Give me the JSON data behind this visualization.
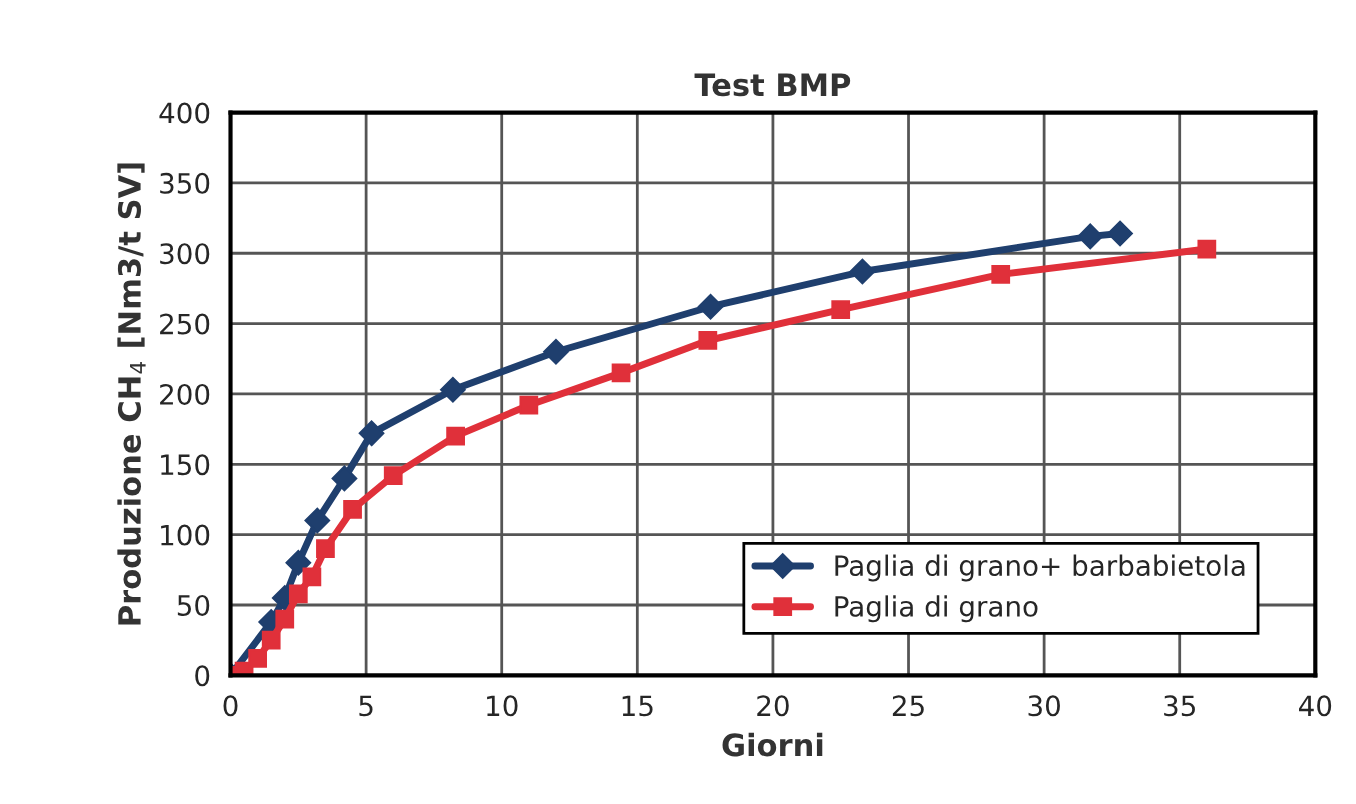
{
  "chart_data": {
    "type": "line",
    "title": "Test BMP",
    "xlabel": "Giorni",
    "ylabel": "Produzione CH$_{4}$ [Nm3/t SV]",
    "xlim": [
      0,
      40
    ],
    "xticks": [
      0,
      5,
      10,
      15,
      20,
      25,
      30,
      35,
      40
    ],
    "ylim": [
      0,
      400
    ],
    "yticks": [
      0,
      50,
      100,
      150,
      200,
      250,
      300,
      350,
      400
    ],
    "grid": true,
    "legend": "bottom right",
    "line_style": "solid",
    "series": [
      {
        "name": "Paglia di grano+ barbabietola",
        "color": "#1f3f6e",
        "marker": "diamond",
        "x": [
          0,
          1.5,
          2,
          2.5,
          3.2,
          4.2,
          5.2,
          8.2,
          12,
          17.7,
          23.3,
          31.7,
          32.8
        ],
        "values": [
          0,
          38,
          55,
          80,
          110,
          140,
          172,
          203,
          230,
          262,
          287,
          312,
          314
        ]
      },
      {
        "name": "Paglia di grano",
        "color": "#e0303a",
        "marker": "square",
        "x": [
          0,
          0.5,
          1,
          1.5,
          2,
          2.5,
          3,
          3.5,
          4.5,
          6,
          8.3,
          11,
          14.4,
          17.6,
          22.5,
          28.4,
          36
        ],
        "values": [
          0,
          3,
          12,
          25,
          40,
          58,
          70,
          90,
          118,
          142,
          170,
          192,
          215,
          238,
          260,
          285,
          303
        ]
      }
    ]
  }
}
